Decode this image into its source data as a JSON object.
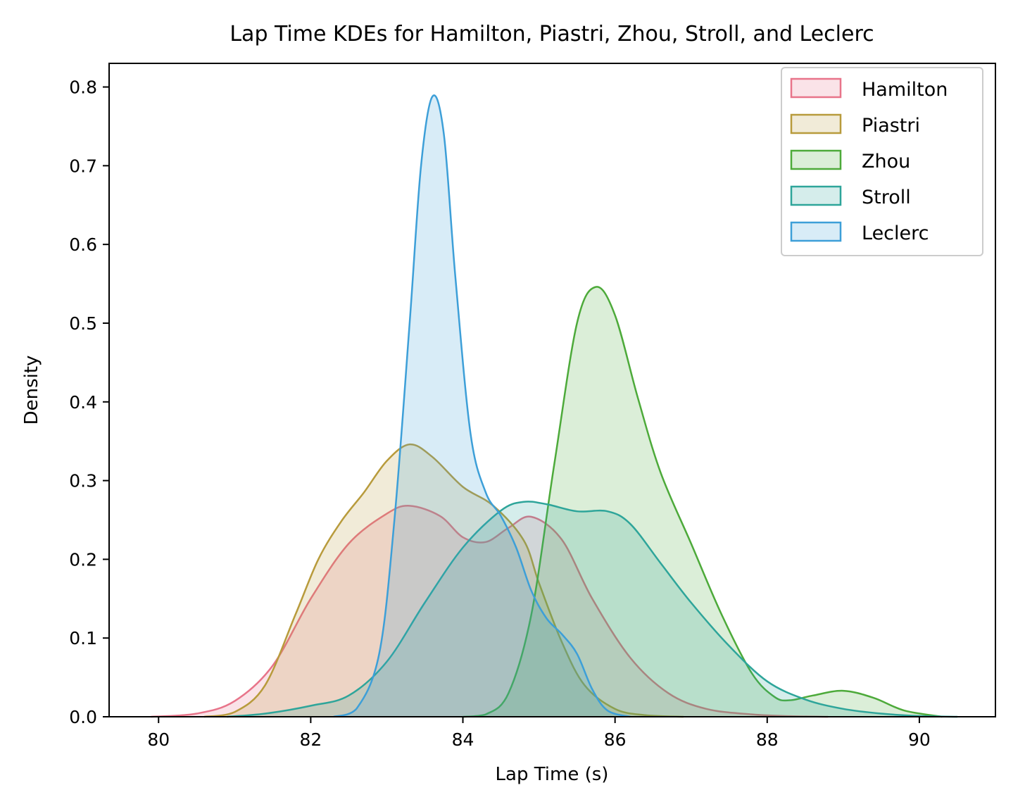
{
  "chart_data": {
    "type": "area",
    "title": "Lap Time KDEs for Hamilton, Piastri, Zhou, Stroll, and Leclerc",
    "xlabel": "Lap Time (s)",
    "ylabel": "Density",
    "xlim": [
      79.35,
      91.0
    ],
    "ylim": [
      0.0,
      0.83
    ],
    "xticks": [
      80,
      82,
      84,
      86,
      88,
      90
    ],
    "yticks": [
      0.0,
      0.1,
      0.2,
      0.3,
      0.4,
      0.5,
      0.6,
      0.7,
      0.8
    ],
    "xtick_labels": [
      "80",
      "82",
      "84",
      "86",
      "88",
      "90"
    ],
    "ytick_labels": [
      "0.0",
      "0.1",
      "0.2",
      "0.3",
      "0.4",
      "0.5",
      "0.6",
      "0.7",
      "0.8"
    ],
    "legend_position": "top-right",
    "grid": false,
    "series": [
      {
        "name": "Hamilton",
        "color": "#e8748a",
        "x": [
          79.9,
          80.5,
          81.0,
          81.5,
          82.0,
          82.5,
          83.0,
          83.3,
          83.7,
          84.0,
          84.3,
          84.6,
          84.9,
          85.3,
          85.7,
          86.2,
          86.7,
          87.2,
          87.8,
          88.3,
          88.8
        ],
        "y": [
          0.0,
          0.004,
          0.02,
          0.065,
          0.15,
          0.22,
          0.258,
          0.268,
          0.255,
          0.228,
          0.222,
          0.24,
          0.254,
          0.225,
          0.15,
          0.075,
          0.03,
          0.01,
          0.003,
          0.0008,
          0.0
        ]
      },
      {
        "name": "Piastri",
        "color": "#b89b3c",
        "x": [
          80.6,
          81.0,
          81.4,
          81.8,
          82.1,
          82.4,
          82.7,
          83.0,
          83.3,
          83.6,
          84.0,
          84.4,
          84.8,
          85.0,
          85.3,
          85.6,
          86.0,
          86.4,
          86.9
        ],
        "y": [
          0.0,
          0.006,
          0.04,
          0.13,
          0.2,
          0.248,
          0.285,
          0.325,
          0.346,
          0.33,
          0.292,
          0.268,
          0.224,
          0.17,
          0.095,
          0.04,
          0.01,
          0.002,
          0.0
        ]
      },
      {
        "name": "Zhou",
        "color": "#4daa3a",
        "x": [
          84.0,
          84.3,
          84.6,
          84.9,
          85.2,
          85.5,
          85.75,
          86.0,
          86.3,
          86.6,
          87.0,
          87.4,
          87.8,
          88.1,
          88.3,
          88.6,
          89.0,
          89.4,
          89.8,
          90.3
        ],
        "y": [
          0.0,
          0.003,
          0.03,
          0.13,
          0.32,
          0.5,
          0.546,
          0.51,
          0.405,
          0.31,
          0.22,
          0.13,
          0.055,
          0.025,
          0.021,
          0.027,
          0.033,
          0.024,
          0.008,
          0.0
        ]
      },
      {
        "name": "Stroll",
        "color": "#2ea59a",
        "x": [
          80.9,
          81.4,
          82.0,
          82.5,
          83.0,
          83.5,
          84.0,
          84.5,
          84.8,
          85.1,
          85.5,
          85.9,
          86.2,
          86.6,
          87.0,
          87.5,
          88.0,
          88.5,
          89.0,
          89.5,
          90.0,
          90.5
        ],
        "y": [
          0.0,
          0.004,
          0.014,
          0.027,
          0.07,
          0.145,
          0.215,
          0.262,
          0.273,
          0.27,
          0.261,
          0.261,
          0.245,
          0.195,
          0.145,
          0.09,
          0.045,
          0.022,
          0.01,
          0.004,
          0.001,
          0.0
        ]
      },
      {
        "name": "Leclerc",
        "color": "#3d9fd8",
        "x": [
          82.3,
          82.6,
          82.9,
          83.1,
          83.3,
          83.45,
          83.6,
          83.75,
          83.9,
          84.1,
          84.3,
          84.5,
          84.7,
          84.9,
          85.1,
          85.3,
          85.5,
          85.7,
          85.9,
          86.2
        ],
        "y": [
          0.0,
          0.01,
          0.08,
          0.25,
          0.5,
          0.7,
          0.788,
          0.74,
          0.56,
          0.36,
          0.285,
          0.255,
          0.215,
          0.16,
          0.125,
          0.105,
          0.08,
          0.035,
          0.008,
          0.0
        ]
      }
    ]
  }
}
